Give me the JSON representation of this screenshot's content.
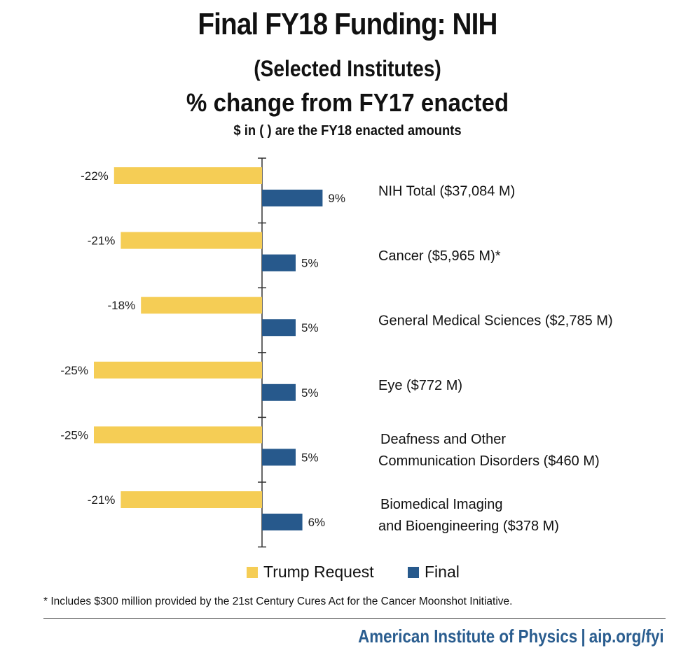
{
  "header": {
    "title": "Final FY18 Funding: NIH",
    "subtitle": "(Selected Institutes)",
    "subtitle2": "% change from FY17 enacted",
    "note": "$ in ( ) are the FY18 enacted amounts"
  },
  "chart_data": {
    "type": "bar",
    "orientation": "horizontal",
    "title": "Final FY18 Funding: NIH",
    "xlabel": "",
    "ylabel": "",
    "xlim": [
      -25,
      10
    ],
    "grid": false,
    "legend_position": "bottom-center",
    "categories": [
      [
        "NIH Total ($37,084 M)"
      ],
      [
        "Cancer ($5,965 M)*"
      ],
      [
        "General Medical Sciences ($2,785 M)"
      ],
      [
        "Eye ($772 M)"
      ],
      [
        "Deafness and Other",
        "Communication Disorders ($460 M)"
      ],
      [
        "Biomedical Imaging",
        "and Bioengineering ($378 M)"
      ]
    ],
    "series": [
      {
        "name": "Trump Request",
        "color": "#f5cd55",
        "values": [
          -22,
          -21,
          -18,
          -25,
          -25,
          -21
        ],
        "labels": [
          "-22%",
          "-21%",
          "-18%",
          "-25%",
          "-25%",
          "-21%"
        ]
      },
      {
        "name": "Final",
        "color": "#27598c",
        "values": [
          9,
          5,
          5,
          5,
          5,
          6
        ],
        "labels": [
          "9%",
          "5%",
          "5%",
          "5%",
          "5%",
          "6%"
        ]
      }
    ]
  },
  "footnote": "* Includes $300 million provided by the 21st Century Cures Act for the Cancer Moonshot Initiative.",
  "brand": {
    "name": "American Institute of Physics",
    "separator": "|",
    "url": "aip.org/fyi"
  }
}
